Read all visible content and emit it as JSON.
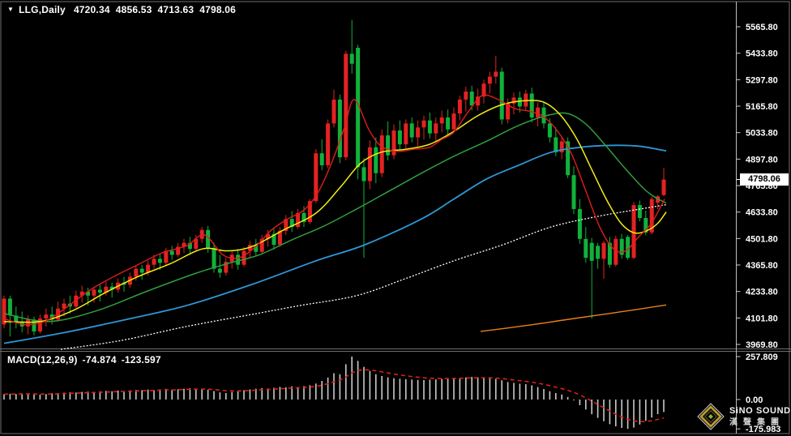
{
  "window": {
    "title": "LLG Daily chart with MACD",
    "bg": "#000000",
    "border_color": "#6f6f6f"
  },
  "symbol_bar": {
    "collapse_icon": "▼",
    "symbol": "LLG,Daily",
    "open": "4720.34",
    "high": "4856.53",
    "low": "4713.63",
    "close": "4798.06"
  },
  "main_panel": {
    "y_axis_labels": [
      "5565.80",
      "5433.80",
      "5297.80",
      "5165.80",
      "5033.80",
      "4897.80",
      "4765.80",
      "4633.80",
      "4501.80",
      "4365.80",
      "4233.80",
      "4101.80",
      "3969.80"
    ],
    "price_tag": "4798.06"
  },
  "macd_panel": {
    "indicator_label": "MACD(12,26,9)",
    "value_main": "-74.874",
    "value_signal": "-123.597",
    "y_axis_labels": [
      "257.809",
      "0.00",
      "-175.983"
    ]
  },
  "logo": {
    "brand": "SiNO SOUND",
    "brand_cn": "漢聲集團",
    "diamond_icon": "sino-sound-diamond"
  },
  "colors": {
    "up_candle": "#e32222",
    "down_candle": "#10b23a",
    "ma_red": "#e01d1d",
    "ma_yellow": "#f2ed12",
    "ma_green": "#2f9e3e",
    "ma_blue": "#2e96d6",
    "ma_white": "#ffffff",
    "ma_orange": "#e5821f",
    "macd_bar": "#c9c9c9",
    "macd_signal": "#e01d1d",
    "axis_text": "#ffffff",
    "panel_border": "#6f6f6f",
    "tag_bg": "#ffffff",
    "tag_text": "#000000"
  },
  "chart_data": {
    "type": "candlestick",
    "symbol": "LLG",
    "timeframe": "Daily",
    "quote": {
      "open": 4720.34,
      "high": 4856.53,
      "low": 4713.63,
      "close": 4798.06
    },
    "y_axis": {
      "max_label": 5565.8,
      "min_label": 3969.8,
      "tick_step": 132.0,
      "grid": false
    },
    "candles": [
      [
        4070,
        4215,
        4050,
        4200
      ],
      [
        4200,
        4215,
        4010,
        4115
      ],
      [
        4115,
        4160,
        4050,
        4085
      ],
      [
        4085,
        4135,
        4030,
        4060
      ],
      [
        4060,
        4115,
        4020,
        4095
      ],
      [
        4095,
        4110,
        4015,
        4035
      ],
      [
        4035,
        4120,
        4025,
        4100
      ],
      [
        4100,
        4150,
        4060,
        4120
      ],
      [
        4120,
        4160,
        4070,
        4095
      ],
      [
        4095,
        4185,
        4085,
        4150
      ],
      [
        4150,
        4200,
        4110,
        4175
      ],
      [
        4175,
        4215,
        4125,
        4160
      ],
      [
        4160,
        4240,
        4150,
        4215
      ],
      [
        4215,
        4265,
        4180,
        4235
      ],
      [
        4235,
        4255,
        4165,
        4215
      ],
      [
        4215,
        4260,
        4180,
        4245
      ],
      [
        4245,
        4270,
        4185,
        4230
      ],
      [
        4230,
        4285,
        4215,
        4260
      ],
      [
        4260,
        4280,
        4205,
        4245
      ],
      [
        4245,
        4300,
        4230,
        4280
      ],
      [
        4280,
        4310,
        4235,
        4270
      ],
      [
        4270,
        4330,
        4255,
        4310
      ],
      [
        4310,
        4365,
        4290,
        4350
      ],
      [
        4350,
        4370,
        4295,
        4330
      ],
      [
        4330,
        4390,
        4315,
        4370
      ],
      [
        4370,
        4420,
        4350,
        4400
      ],
      [
        4400,
        4425,
        4345,
        4380
      ],
      [
        4380,
        4455,
        4370,
        4440
      ],
      [
        4440,
        4465,
        4395,
        4420
      ],
      [
        4420,
        4480,
        4410,
        4460
      ],
      [
        4460,
        4500,
        4430,
        4480
      ],
      [
        4480,
        4510,
        4420,
        4450
      ],
      [
        4450,
        4520,
        4440,
        4500
      ],
      [
        4500,
        4560,
        4480,
        4545
      ],
      [
        4545,
        4565,
        4430,
        4455
      ],
      [
        4455,
        4480,
        4330,
        4350
      ],
      [
        4350,
        4420,
        4305,
        4330
      ],
      [
        4330,
        4405,
        4315,
        4385
      ],
      [
        4385,
        4440,
        4350,
        4420
      ],
      [
        4420,
        4450,
        4345,
        4370
      ],
      [
        4370,
        4460,
        4360,
        4440
      ],
      [
        4440,
        4490,
        4405,
        4470
      ],
      [
        4470,
        4500,
        4415,
        4435
      ],
      [
        4435,
        4520,
        4425,
        4500
      ],
      [
        4500,
        4545,
        4460,
        4525
      ],
      [
        4525,
        4550,
        4445,
        4470
      ],
      [
        4470,
        4560,
        4460,
        4540
      ],
      [
        4540,
        4620,
        4520,
        4600
      ],
      [
        4600,
        4640,
        4535,
        4560
      ],
      [
        4560,
        4650,
        4550,
        4630
      ],
      [
        4630,
        4665,
        4560,
        4585
      ],
      [
        4585,
        4700,
        4575,
        4690
      ],
      [
        4690,
        4950,
        4680,
        4930
      ],
      [
        4930,
        5000,
        4845,
        4870
      ],
      [
        4870,
        5100,
        4855,
        5080
      ],
      [
        5080,
        5250,
        5060,
        5200
      ],
      [
        5200,
        5225,
        4880,
        4910
      ],
      [
        4910,
        5445,
        4895,
        5430
      ],
      [
        5430,
        5600,
        5330,
        5380
      ],
      [
        5460,
        5475,
        4800,
        4860
      ],
      [
        4860,
        4905,
        4405,
        4790
      ],
      [
        4790,
        4995,
        4750,
        4960
      ],
      [
        4960,
        5010,
        4780,
        4830
      ],
      [
        4830,
        5050,
        4810,
        5020
      ],
      [
        5020,
        5090,
        4895,
        4920
      ],
      [
        4920,
        5075,
        4900,
        5045
      ],
      [
        5045,
        5095,
        4945,
        4975
      ],
      [
        4975,
        5100,
        4955,
        5080
      ],
      [
        5080,
        5110,
        4985,
        5010
      ],
      [
        5010,
        5095,
        4965,
        5060
      ],
      [
        5060,
        5120,
        5000,
        5095
      ],
      [
        5095,
        5135,
        5005,
        5030
      ],
      [
        5030,
        5110,
        4985,
        5080
      ],
      [
        5080,
        5145,
        5035,
        5110
      ],
      [
        5110,
        5150,
        5025,
        5050
      ],
      [
        5050,
        5160,
        5035,
        5130
      ],
      [
        5130,
        5220,
        5095,
        5200
      ],
      [
        5200,
        5265,
        5140,
        5240
      ],
      [
        5240,
        5270,
        5145,
        5170
      ],
      [
        5170,
        5255,
        5145,
        5215
      ],
      [
        5215,
        5300,
        5180,
        5280
      ],
      [
        5280,
        5340,
        5230,
        5315
      ],
      [
        5315,
        5420,
        5280,
        5340
      ],
      [
        5340,
        5360,
        5075,
        5100
      ],
      [
        5100,
        5205,
        5080,
        5180
      ],
      [
        5180,
        5235,
        5125,
        5210
      ],
      [
        5210,
        5240,
        5135,
        5165
      ],
      [
        5165,
        5250,
        5145,
        5230
      ],
      [
        5230,
        5260,
        5085,
        5110
      ],
      [
        5110,
        5185,
        5065,
        5160
      ],
      [
        5160,
        5190,
        5055,
        5080
      ],
      [
        5080,
        5105,
        4985,
        5010
      ],
      [
        5010,
        5060,
        4915,
        4935
      ],
      [
        4935,
        5015,
        4900,
        4990
      ],
      [
        4990,
        5010,
        4805,
        4820
      ],
      [
        4820,
        4865,
        4625,
        4650
      ],
      [
        4650,
        4700,
        4475,
        4500
      ],
      [
        4500,
        4560,
        4380,
        4405
      ],
      [
        4480,
        4505,
        4100,
        4390
      ],
      [
        4465,
        4480,
        4350,
        4400
      ],
      [
        4400,
        4490,
        4300,
        4480
      ],
      [
        4480,
        4510,
        4355,
        4370
      ],
      [
        4370,
        4515,
        4360,
        4500
      ],
      [
        4500,
        4525,
        4400,
        4420
      ],
      [
        4510,
        4520,
        4395,
        4405
      ],
      [
        4405,
        4685,
        4398,
        4670
      ],
      [
        4670,
        4692,
        4588,
        4605
      ],
      [
        4605,
        4642,
        4518,
        4532
      ],
      [
        4532,
        4712,
        4522,
        4700
      ],
      [
        4682,
        4720,
        4650,
        4714
      ],
      [
        4720.34,
        4856.53,
        4713.63,
        4798.06
      ]
    ],
    "ma_lines": {
      "red": [
        [
          5,
          4100
        ],
        [
          30,
          4070
        ],
        [
          55,
          4085
        ],
        [
          80,
          4150
        ],
        [
          110,
          4240
        ],
        [
          140,
          4310
        ],
        [
          170,
          4370
        ],
        [
          200,
          4430
        ],
        [
          230,
          4465
        ],
        [
          252,
          4520
        ],
        [
          275,
          4420
        ],
        [
          295,
          4405
        ],
        [
          315,
          4460
        ],
        [
          335,
          4545
        ],
        [
          355,
          4600
        ],
        [
          375,
          4645
        ],
        [
          392,
          4730
        ],
        [
          410,
          4890
        ],
        [
          425,
          5060
        ],
        [
          437,
          5200
        ],
        [
          455,
          5050
        ],
        [
          470,
          4967
        ],
        [
          490,
          4940
        ],
        [
          510,
          4950
        ],
        [
          530,
          4960
        ],
        [
          545,
          5000
        ],
        [
          560,
          5036
        ],
        [
          578,
          5140
        ],
        [
          595,
          5220
        ],
        [
          615,
          5200
        ],
        [
          635,
          5155
        ],
        [
          655,
          5140
        ],
        [
          672,
          5110
        ],
        [
          690,
          5030
        ],
        [
          706,
          4920
        ],
        [
          722,
          4750
        ],
        [
          740,
          4560
        ],
        [
          757,
          4450
        ],
        [
          772,
          4440
        ],
        [
          788,
          4510
        ],
        [
          804,
          4580
        ],
        [
          820,
          4700
        ]
      ],
      "yellow": [
        [
          5,
          4085
        ],
        [
          50,
          4085
        ],
        [
          90,
          4140
        ],
        [
          130,
          4230
        ],
        [
          170,
          4310
        ],
        [
          210,
          4375
        ],
        [
          250,
          4450
        ],
        [
          280,
          4440
        ],
        [
          310,
          4460
        ],
        [
          350,
          4545
        ],
        [
          390,
          4630
        ],
        [
          420,
          4760
        ],
        [
          445,
          4880
        ],
        [
          470,
          4935
        ],
        [
          500,
          4950
        ],
        [
          530,
          4975
        ],
        [
          560,
          5040
        ],
        [
          590,
          5120
        ],
        [
          620,
          5175
        ],
        [
          650,
          5195
        ],
        [
          672,
          5185
        ],
        [
          692,
          5120
        ],
        [
          712,
          5000
        ],
        [
          730,
          4850
        ],
        [
          748,
          4700
        ],
        [
          766,
          4580
        ],
        [
          783,
          4530
        ],
        [
          800,
          4545
        ],
        [
          812,
          4580
        ],
        [
          822,
          4635
        ]
      ],
      "green": [
        [
          5,
          4125
        ],
        [
          60,
          4085
        ],
        [
          120,
          4140
        ],
        [
          180,
          4235
        ],
        [
          240,
          4325
        ],
        [
          280,
          4375
        ],
        [
          320,
          4420
        ],
        [
          360,
          4495
        ],
        [
          400,
          4565
        ],
        [
          440,
          4650
        ],
        [
          480,
          4740
        ],
        [
          520,
          4830
        ],
        [
          560,
          4915
        ],
        [
          600,
          4990
        ],
        [
          640,
          5070
        ],
        [
          675,
          5120
        ],
        [
          700,
          5130
        ],
        [
          722,
          5080
        ],
        [
          745,
          4980
        ],
        [
          770,
          4860
        ],
        [
          795,
          4750
        ],
        [
          810,
          4705
        ],
        [
          822,
          4680
        ]
      ],
      "blue": [
        [
          5,
          3975
        ],
        [
          80,
          4030
        ],
        [
          150,
          4090
        ],
        [
          230,
          4165
        ],
        [
          310,
          4270
        ],
        [
          390,
          4390
        ],
        [
          450,
          4470
        ],
        [
          520,
          4600
        ],
        [
          560,
          4700
        ],
        [
          600,
          4800
        ],
        [
          640,
          4870
        ],
        [
          680,
          4935
        ],
        [
          720,
          4962
        ],
        [
          760,
          4970
        ],
        [
          790,
          4965
        ],
        [
          822,
          4942
        ]
      ],
      "white": [
        [
          75,
          3945
        ],
        [
          150,
          3990
        ],
        [
          230,
          4060
        ],
        [
          310,
          4120
        ],
        [
          370,
          4165
        ],
        [
          440,
          4215
        ],
        [
          500,
          4300
        ],
        [
          560,
          4390
        ],
        [
          620,
          4470
        ],
        [
          680,
          4560
        ],
        [
          740,
          4615
        ],
        [
          790,
          4650
        ],
        [
          822,
          4672
        ]
      ],
      "orange": [
        [
          593,
          4035
        ],
        [
          650,
          4065
        ],
        [
          700,
          4095
        ],
        [
          760,
          4130
        ],
        [
          822,
          4168
        ]
      ]
    },
    "macd": {
      "params": [
        12,
        26,
        9
      ],
      "last_main": -74.874,
      "last_signal": -123.597,
      "scale": {
        "max": 257.809,
        "zero": 0.0,
        "min": -175.983
      },
      "signal_period": 9,
      "histogram": [
        32,
        35,
        33,
        37,
        34,
        31,
        29,
        33,
        37,
        39,
        41,
        44,
        42,
        46,
        48,
        45,
        49,
        52,
        50,
        54,
        51,
        55,
        58,
        56,
        60,
        57,
        61,
        64,
        59,
        62,
        65,
        68,
        66,
        63,
        59,
        51,
        43,
        39,
        45,
        51,
        56,
        61,
        65,
        69,
        66,
        71,
        76,
        73,
        79,
        75,
        81,
        86,
        96,
        112,
        132,
        158,
        152,
        212,
        257.809,
        232,
        196,
        172,
        152,
        141,
        133,
        128,
        125,
        122,
        120,
        118,
        117,
        119,
        121,
        124,
        126,
        128,
        130,
        133,
        136,
        134,
        131,
        128,
        124,
        115,
        105,
        100,
        95,
        92,
        85,
        75,
        63,
        50,
        39,
        30,
        15,
        -5,
        -34,
        -60,
        -88,
        -110,
        -130,
        -148,
        -161,
        -170,
        -175.983,
        -168,
        -150,
        -128,
        -108,
        -88,
        -74.874
      ]
    }
  }
}
